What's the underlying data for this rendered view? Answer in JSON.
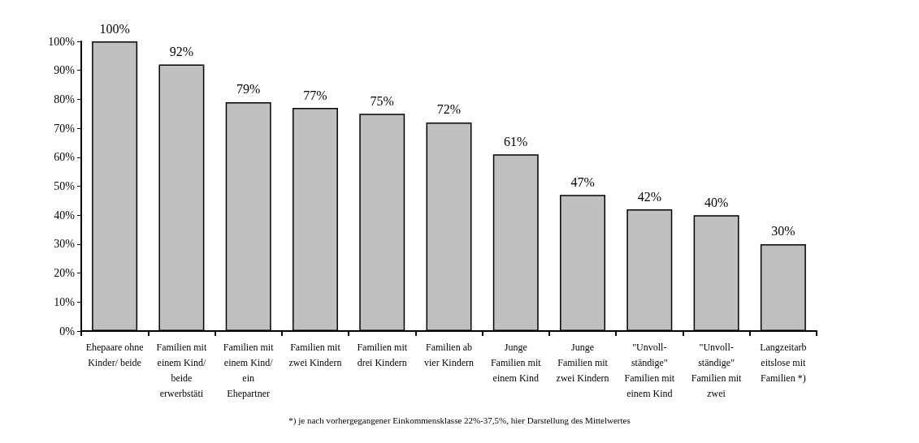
{
  "chart_data": {
    "type": "bar",
    "categories": [
      "Ehepaare ohne Kinder/ beide",
      "Familien mit einem Kind/ beide erwerbstäti",
      "Familien mit einem Kind/ ein Ehepartner",
      "Familien mit zwei Kindern",
      "Familien mit drei Kindern",
      "Familien ab vier Kindern",
      "Junge Familien mit einem Kind",
      "Junge Familien mit zwei Kindern",
      "\"Unvoll-ständige\" Familien mit einem Kind",
      "\"Unvoll-ständige\" Familien mit zwei",
      "Langzeitarb eitslose mit Familien *)"
    ],
    "values": [
      100,
      92,
      79,
      77,
      75,
      72,
      61,
      47,
      42,
      40,
      30
    ],
    "value_labels": [
      "100%",
      "92%",
      "79%",
      "77%",
      "75%",
      "72%",
      "61%",
      "47%",
      "42%",
      "40%",
      "30%"
    ],
    "color": "#c0c0c0",
    "ylim": [
      0,
      100
    ],
    "yticks": [
      {
        "value": 0,
        "label": "0%"
      },
      {
        "value": 10,
        "label": "10%"
      },
      {
        "value": 20,
        "label": "20%"
      },
      {
        "value": 30,
        "label": "30%"
      },
      {
        "value": 40,
        "label": "40%"
      },
      {
        "value": 50,
        "label": "50%"
      },
      {
        "value": 60,
        "label": "60%"
      },
      {
        "value": 70,
        "label": "70%"
      },
      {
        "value": 80,
        "label": "80%"
      },
      {
        "value": 90,
        "label": "90%"
      },
      {
        "value": 100,
        "label": "100%"
      }
    ],
    "grid": false,
    "annotations": [
      "*) je nach vorhergegangener Einkommensklasse 22%-37,5%, hier Darstellung des Mittelwertes"
    ]
  }
}
